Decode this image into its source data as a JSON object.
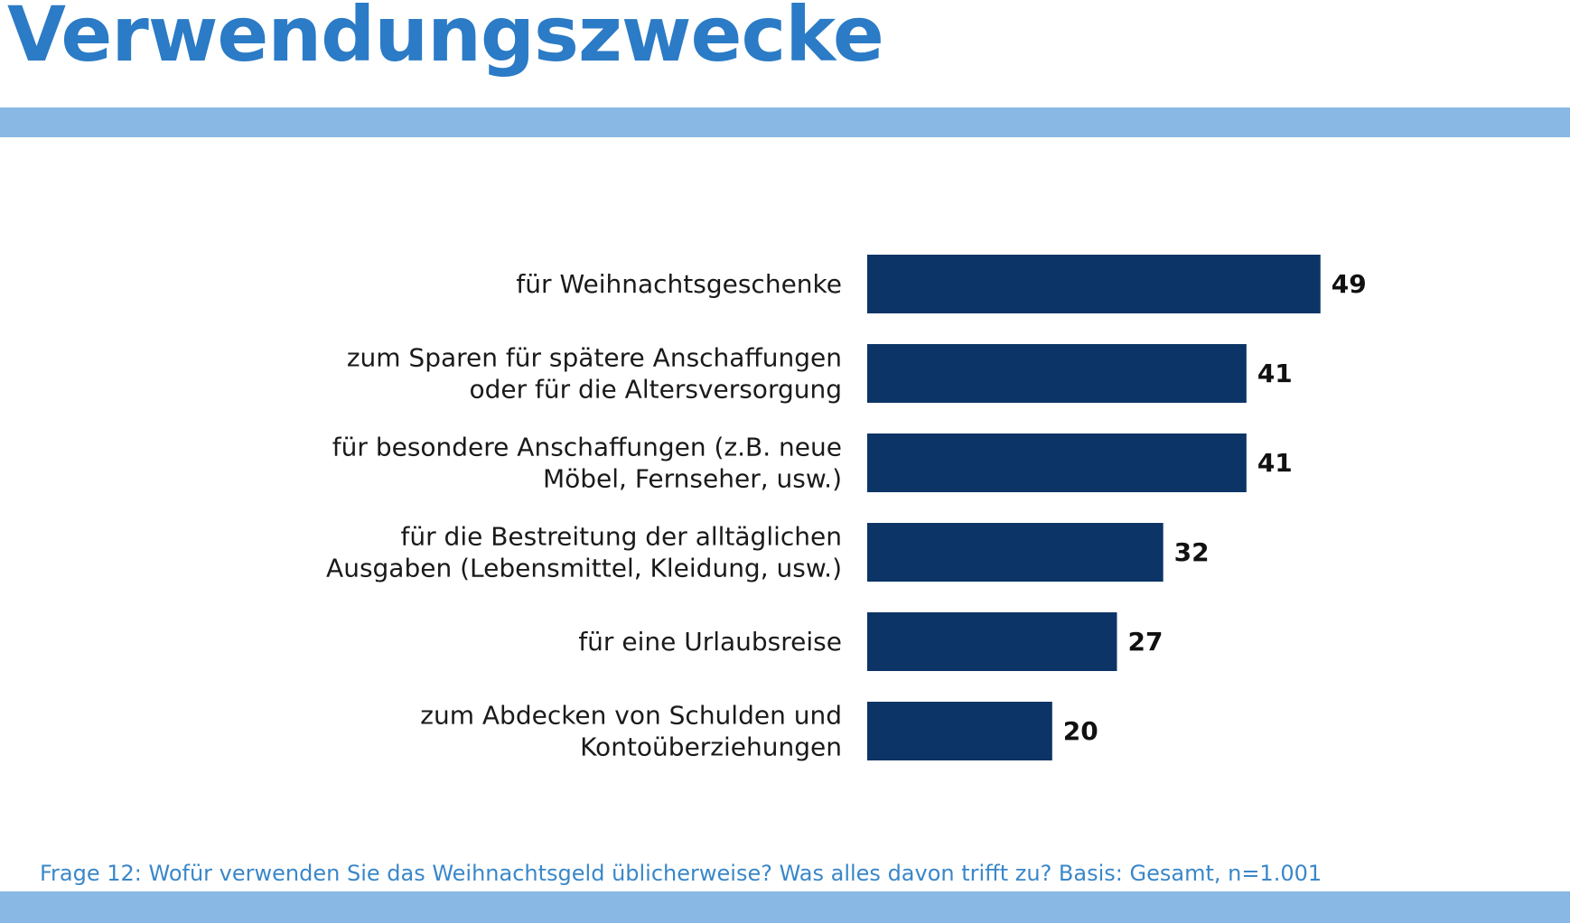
{
  "header": {
    "title": "Verwendungszwecke"
  },
  "footer": {
    "note": "Frage 12: Wofür verwenden Sie das Weihnachtsgeld üblicherweise? Was alles davon trifft zu? Basis: Gesamt, n=1.001"
  },
  "colors": {
    "title": "#2b7bc6",
    "band": "#8ab8e4",
    "bar": "#0c3466",
    "footnote": "#3a87c9"
  },
  "chart_data": {
    "type": "bar",
    "orientation": "horizontal",
    "categories": [
      [
        "für Weihnachtsgeschenke"
      ],
      [
        "zum Sparen für spätere Anschaffungen",
        "oder für die Altersversorgung"
      ],
      [
        "für besondere Anschaffungen (z.B. neue",
        "Möbel, Fernseher, usw.)"
      ],
      [
        "für die Bestreitung der alltäglichen",
        "Ausgaben (Lebensmittel, Kleidung, usw.)"
      ],
      [
        "für eine Urlaubsreise"
      ],
      [
        "zum Abdecken von Schulden und",
        "Kontoüberziehungen"
      ]
    ],
    "values": [
      49,
      41,
      41,
      32,
      27,
      20
    ],
    "title": "",
    "xlabel": "",
    "ylabel": "",
    "data_labels": true,
    "grid": false,
    "legend": "none"
  }
}
